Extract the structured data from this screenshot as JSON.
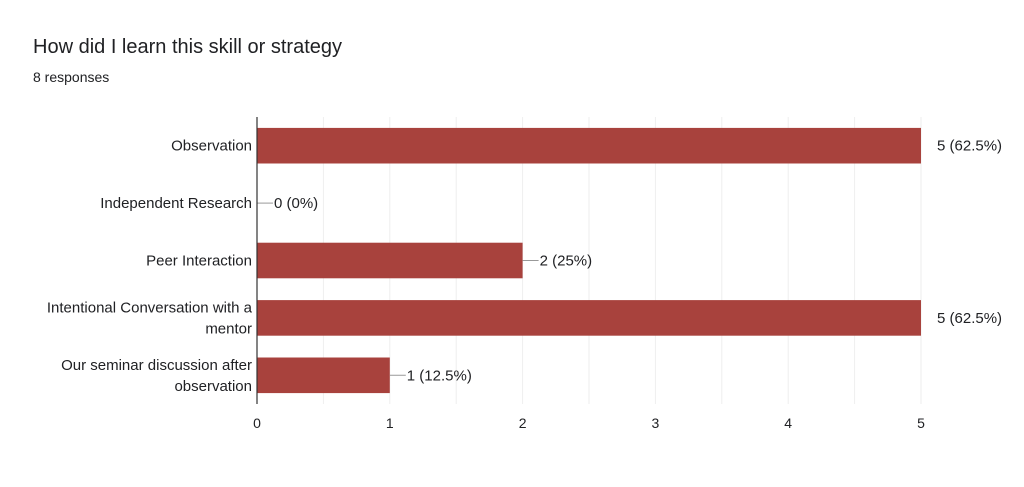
{
  "title": "How did I learn this skill or strategy",
  "subtitle": "8 responses",
  "colors": {
    "bar": "#a8423d",
    "grid": "#eeeeee",
    "axis": "#333333",
    "text": "#202124"
  },
  "chart_data": {
    "type": "bar",
    "orientation": "horizontal",
    "categories": [
      [
        "Observation"
      ],
      [
        "Independent Research"
      ],
      [
        "Peer Interaction"
      ],
      [
        "Intentional Conversation with a",
        "mentor"
      ],
      [
        "Our seminar discussion after",
        "observation"
      ]
    ],
    "values": [
      5,
      0,
      2,
      5,
      1
    ],
    "data_labels": [
      "5 (62.5%)",
      "0 (0%)",
      "2 (25%)",
      "5 (62.5%)",
      "1 (12.5%)"
    ],
    "xlim": [
      0,
      5
    ],
    "xticks": [
      "0",
      "1",
      "2",
      "3",
      "4",
      "5"
    ],
    "grid": true,
    "legend": "none"
  }
}
